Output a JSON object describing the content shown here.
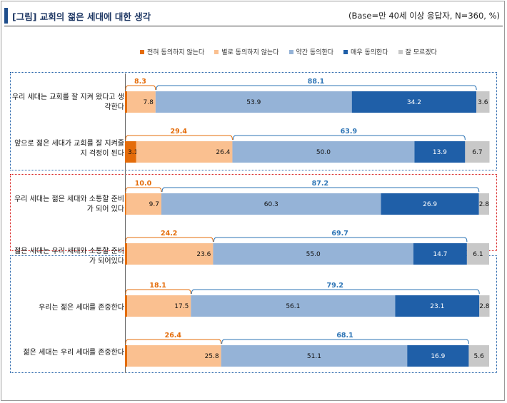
{
  "header": {
    "title": "[그림] 교회의 젊은 세대에 대한 생각",
    "base": "(Base=만 40세 이상 응답자, N=360, %)"
  },
  "colors": {
    "seg": [
      "#e46c0a",
      "#fac090",
      "#95b3d7",
      "#1f5fa8",
      "#c8c8c8"
    ],
    "bracket_neg": "#e46c0a",
    "bracket_pos": "#2e75b6"
  },
  "chart_data": {
    "type": "bar",
    "orientation": "horizontal",
    "stacked": true,
    "legend_position": "top",
    "series_names": [
      "전혀 동의하지 않는다",
      "별로 동의하지 않는다",
      "약간 동의한다",
      "매우 동의한다",
      "잘 모르겠다"
    ],
    "categories": [
      "우리 세대는 교회를 잘 지켜 왔다고 생각한다",
      "앞으로 젊은 세대가 교회를 잘 지켜줄지 걱정이 된다",
      "우리 세대는 젊은 세대와 소통할 준비가 되어 있다",
      "젊은 세대는 우리 세대와 소통할 준비가 되어있다",
      "우리는 젊은 세대를 존중한다",
      "젊은 세대는 우리 세대를 존중한다"
    ],
    "rows": [
      {
        "values": [
          0.6,
          7.8,
          53.9,
          34.2,
          3.6
        ],
        "disagree_total": 8.3,
        "agree_total": 88.1
      },
      {
        "values": [
          3.1,
          26.4,
          50.0,
          13.9,
          6.7
        ],
        "disagree_total": 29.4,
        "agree_total": 63.9
      },
      {
        "values": [
          0.3,
          9.7,
          60.3,
          26.9,
          2.8
        ],
        "disagree_total": 10.0,
        "agree_total": 87.2
      },
      {
        "values": [
          0.6,
          23.6,
          55.0,
          14.7,
          6.1
        ],
        "disagree_total": 24.2,
        "agree_total": 69.7
      },
      {
        "values": [
          0.6,
          17.5,
          56.1,
          23.1,
          2.8
        ],
        "disagree_total": 18.1,
        "agree_total": 79.2
      },
      {
        "values": [
          0.6,
          25.8,
          51.1,
          16.9,
          5.6
        ],
        "disagree_total": 26.4,
        "agree_total": 68.1
      }
    ],
    "value_labels": [
      [
        "0.6",
        "7.8",
        "53.9",
        "34.2",
        "3.6"
      ],
      [
        "3.1",
        "26.4",
        "50.0",
        "13.9",
        "6.7"
      ],
      [
        "0.3",
        "9.7",
        "60.3",
        "26.9",
        "2.8"
      ],
      [
        "0.6",
        "23.6",
        "55.0",
        "14.7",
        "6.1"
      ],
      [
        "0.6",
        "17.5",
        "56.1",
        "23.1",
        "2.8"
      ],
      [
        "0.6",
        "25.8",
        "51.1",
        "16.9",
        "5.6"
      ]
    ],
    "total_labels": [
      [
        "8.3",
        "88.1"
      ],
      [
        "29.4",
        "63.9"
      ],
      [
        "10.0",
        "87.2"
      ],
      [
        "24.2",
        "69.7"
      ],
      [
        "18.1",
        "79.2"
      ],
      [
        "26.4",
        "68.1"
      ]
    ],
    "xlim": [
      0,
      100
    ]
  }
}
